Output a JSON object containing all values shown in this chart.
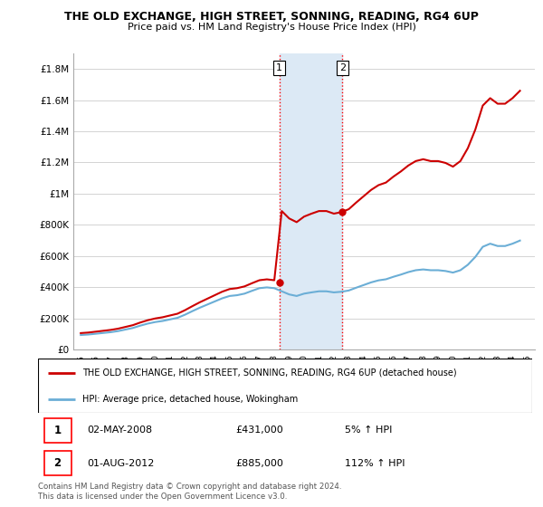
{
  "title": "THE OLD EXCHANGE, HIGH STREET, SONNING, READING, RG4 6UP",
  "subtitle": "Price paid vs. HM Land Registry's House Price Index (HPI)",
  "ylim": [
    0,
    1900000
  ],
  "yticks": [
    0,
    200000,
    400000,
    600000,
    800000,
    1000000,
    1200000,
    1400000,
    1600000,
    1800000
  ],
  "ytick_labels": [
    "£0",
    "£200K",
    "£400K",
    "£600K",
    "£800K",
    "£1M",
    "£1.2M",
    "£1.4M",
    "£1.6M",
    "£1.8M"
  ],
  "xlabel_years": [
    1995,
    1996,
    1997,
    1998,
    1999,
    2000,
    2001,
    2002,
    2003,
    2004,
    2005,
    2006,
    2007,
    2008,
    2009,
    2010,
    2011,
    2012,
    2013,
    2014,
    2015,
    2016,
    2017,
    2018,
    2019,
    2020,
    2021,
    2022,
    2023,
    2024,
    2025
  ],
  "hpi_years": [
    1995.0,
    1995.5,
    1996.0,
    1996.5,
    1997.0,
    1997.5,
    1998.0,
    1998.5,
    1999.0,
    1999.5,
    2000.0,
    2000.5,
    2001.0,
    2001.5,
    2002.0,
    2002.5,
    2003.0,
    2003.5,
    2004.0,
    2004.5,
    2005.0,
    2005.5,
    2006.0,
    2006.5,
    2007.0,
    2007.5,
    2008.0,
    2008.5,
    2009.0,
    2009.5,
    2010.0,
    2010.5,
    2011.0,
    2011.5,
    2012.0,
    2012.5,
    2013.0,
    2013.5,
    2014.0,
    2014.5,
    2015.0,
    2015.5,
    2016.0,
    2016.5,
    2017.0,
    2017.5,
    2018.0,
    2018.5,
    2019.0,
    2019.5,
    2020.0,
    2020.5,
    2021.0,
    2021.5,
    2022.0,
    2022.5,
    2023.0,
    2023.5,
    2024.0,
    2024.5
  ],
  "hpi_values": [
    95000,
    98000,
    103000,
    108000,
    113000,
    120000,
    130000,
    140000,
    155000,
    168000,
    178000,
    185000,
    195000,
    205000,
    225000,
    248000,
    270000,
    290000,
    310000,
    330000,
    345000,
    350000,
    360000,
    378000,
    395000,
    400000,
    395000,
    375000,
    355000,
    345000,
    360000,
    368000,
    375000,
    375000,
    368000,
    372000,
    380000,
    398000,
    415000,
    432000,
    445000,
    452000,
    468000,
    482000,
    498000,
    510000,
    515000,
    510000,
    510000,
    505000,
    495000,
    510000,
    545000,
    595000,
    660000,
    680000,
    665000,
    665000,
    680000,
    700000
  ],
  "sale1_year": 2008.33,
  "sale1_value": 431000,
  "sale2_year": 2012.58,
  "sale2_value": 885000,
  "hpi_color": "#6baed6",
  "property_color": "#cc0000",
  "shaded_color": "#dce9f5",
  "legend_property_label": "THE OLD EXCHANGE, HIGH STREET, SONNING, READING, RG4 6UP (detached house)",
  "legend_hpi_label": "HPI: Average price, detached house, Wokingham",
  "table_rows": [
    {
      "num": "1",
      "date": "02-MAY-2008",
      "price": "£431,000",
      "hpi": "5% ↑ HPI"
    },
    {
      "num": "2",
      "date": "01-AUG-2012",
      "price": "£885,000",
      "hpi": "112% ↑ HPI"
    }
  ],
  "footer": "Contains HM Land Registry data © Crown copyright and database right 2024.\nThis data is licensed under the Open Government Licence v3.0.",
  "bg_color": "#ffffff",
  "grid_color": "#cccccc"
}
